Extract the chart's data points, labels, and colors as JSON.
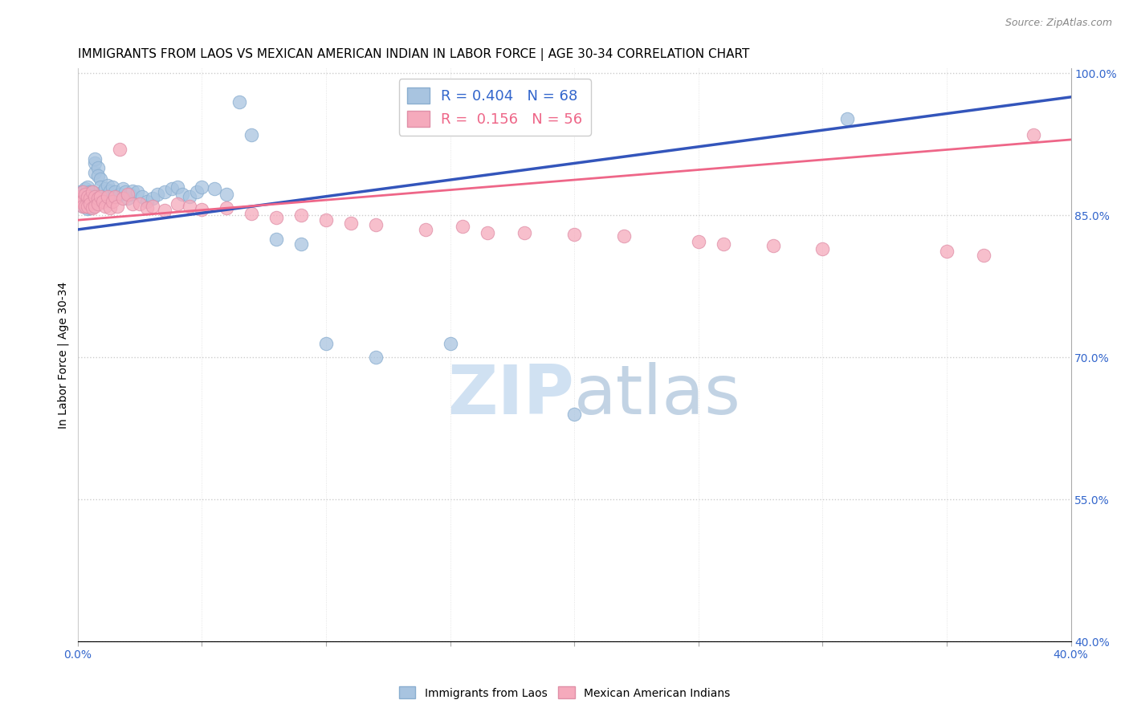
{
  "title": "IMMIGRANTS FROM LAOS VS MEXICAN AMERICAN INDIAN IN LABOR FORCE | AGE 30-34 CORRELATION CHART",
  "source": "Source: ZipAtlas.com",
  "ylabel": "In Labor Force | Age 30-34",
  "xlim": [
    0.0,
    0.4
  ],
  "ylim": [
    0.4,
    1.005
  ],
  "xticks": [
    0.0,
    0.05,
    0.1,
    0.15,
    0.2,
    0.25,
    0.3,
    0.35,
    0.4
  ],
  "xticklabels": [
    "0.0%",
    "",
    "",
    "",
    "",
    "",
    "",
    "",
    "40.0%"
  ],
  "yticks_right": [
    0.4,
    0.55,
    0.7,
    0.85,
    1.0
  ],
  "yticklabels_right": [
    "40.0%",
    "55.0%",
    "70.0%",
    "85.0%",
    "100.0%"
  ],
  "blue_R": 0.404,
  "blue_N": 68,
  "pink_R": 0.156,
  "pink_N": 56,
  "blue_color": "#A8C4E0",
  "pink_color": "#F5AABC",
  "blue_line_color": "#3355BB",
  "pink_line_color": "#EE6688",
  "blue_scatter_x": [
    0.001,
    0.001,
    0.001,
    0.002,
    0.002,
    0.002,
    0.002,
    0.003,
    0.003,
    0.003,
    0.003,
    0.004,
    0.004,
    0.004,
    0.004,
    0.004,
    0.005,
    0.005,
    0.005,
    0.005,
    0.005,
    0.006,
    0.006,
    0.006,
    0.007,
    0.007,
    0.007,
    0.008,
    0.008,
    0.009,
    0.009,
    0.01,
    0.01,
    0.011,
    0.012,
    0.013,
    0.014,
    0.015,
    0.016,
    0.017,
    0.018,
    0.019,
    0.02,
    0.021,
    0.022,
    0.024,
    0.026,
    0.028,
    0.03,
    0.032,
    0.035,
    0.038,
    0.04,
    0.042,
    0.045,
    0.048,
    0.05,
    0.055,
    0.06,
    0.065,
    0.07,
    0.08,
    0.09,
    0.1,
    0.12,
    0.15,
    0.2,
    0.31
  ],
  "blue_scatter_y": [
    0.87,
    0.875,
    0.865,
    0.87,
    0.875,
    0.86,
    0.865,
    0.872,
    0.878,
    0.86,
    0.865,
    0.875,
    0.87,
    0.862,
    0.857,
    0.88,
    0.875,
    0.87,
    0.86,
    0.865,
    0.858,
    0.875,
    0.87,
    0.865,
    0.895,
    0.905,
    0.91,
    0.9,
    0.892,
    0.888,
    0.88,
    0.875,
    0.87,
    0.878,
    0.882,
    0.876,
    0.88,
    0.875,
    0.87,
    0.872,
    0.878,
    0.875,
    0.868,
    0.872,
    0.876,
    0.875,
    0.87,
    0.865,
    0.868,
    0.872,
    0.875,
    0.878,
    0.88,
    0.872,
    0.87,
    0.875,
    0.88,
    0.878,
    0.872,
    0.97,
    0.935,
    0.825,
    0.82,
    0.715,
    0.7,
    0.715,
    0.64,
    0.952
  ],
  "pink_scatter_x": [
    0.001,
    0.001,
    0.002,
    0.002,
    0.002,
    0.003,
    0.003,
    0.004,
    0.004,
    0.005,
    0.005,
    0.006,
    0.006,
    0.007,
    0.007,
    0.008,
    0.008,
    0.009,
    0.01,
    0.011,
    0.012,
    0.013,
    0.014,
    0.015,
    0.016,
    0.017,
    0.018,
    0.02,
    0.022,
    0.025,
    0.028,
    0.03,
    0.035,
    0.04,
    0.045,
    0.05,
    0.06,
    0.07,
    0.08,
    0.09,
    0.1,
    0.11,
    0.12,
    0.14,
    0.155,
    0.165,
    0.18,
    0.2,
    0.22,
    0.25,
    0.26,
    0.28,
    0.3,
    0.35,
    0.365,
    0.385
  ],
  "pink_scatter_y": [
    0.87,
    0.865,
    0.875,
    0.865,
    0.86,
    0.872,
    0.86,
    0.87,
    0.86,
    0.868,
    0.862,
    0.858,
    0.875,
    0.87,
    0.86,
    0.868,
    0.862,
    0.87,
    0.865,
    0.86,
    0.87,
    0.858,
    0.865,
    0.87,
    0.86,
    0.92,
    0.868,
    0.872,
    0.862,
    0.862,
    0.858,
    0.86,
    0.855,
    0.862,
    0.86,
    0.856,
    0.858,
    0.852,
    0.848,
    0.85,
    0.845,
    0.842,
    0.84,
    0.835,
    0.838,
    0.832,
    0.832,
    0.83,
    0.828,
    0.822,
    0.82,
    0.818,
    0.815,
    0.812,
    0.808,
    0.935
  ],
  "blue_trend_x": [
    0.0,
    0.4
  ],
  "blue_trend_y": [
    0.835,
    0.975
  ],
  "pink_trend_x": [
    0.0,
    0.4
  ],
  "pink_trend_y": [
    0.845,
    0.93
  ],
  "watermark_zip": "ZIP",
  "watermark_atlas": "atlas",
  "title_fontsize": 11,
  "axis_label_fontsize": 10,
  "tick_fontsize": 10,
  "legend_fontsize": 13
}
